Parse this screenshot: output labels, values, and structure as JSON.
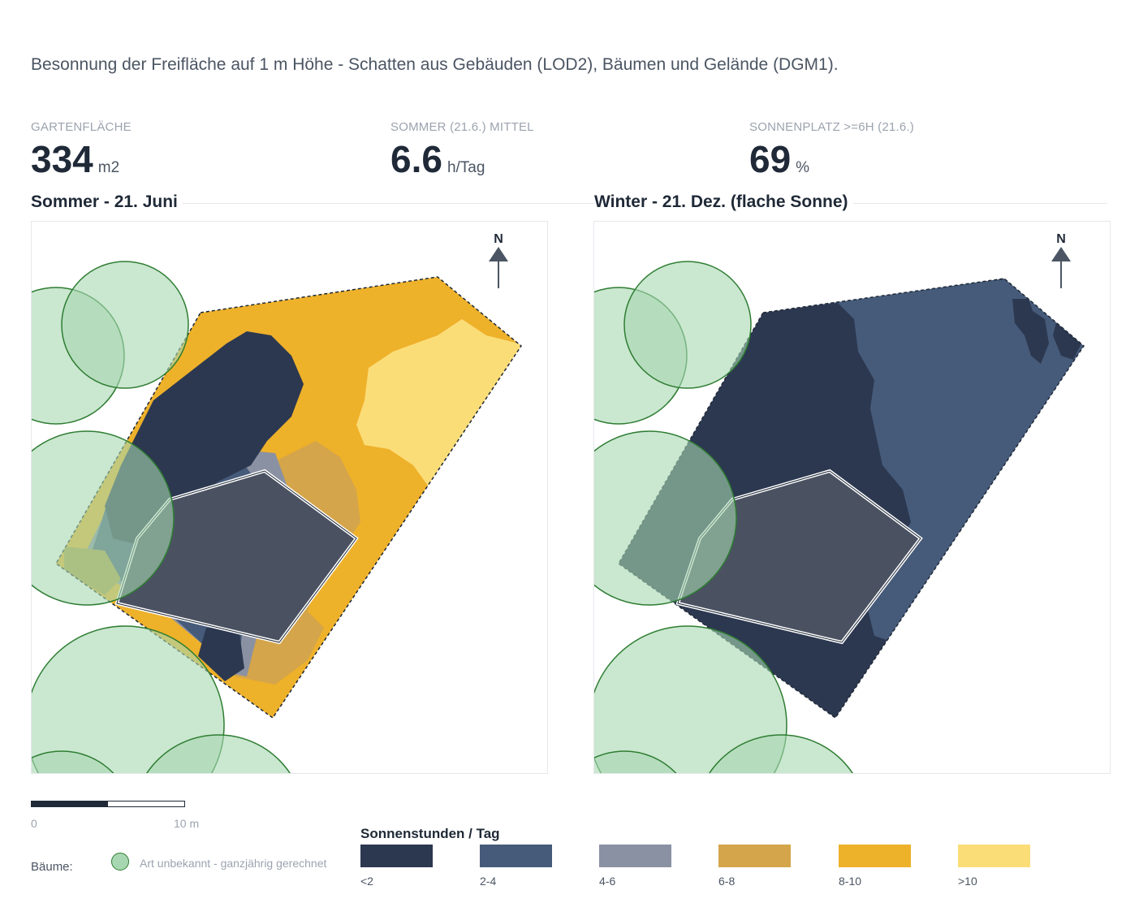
{
  "subtitle": "Besonnung der Freifläche auf 1 m Höhe - Schatten aus Gebäuden (LOD2), Bäumen und Gelände (DGM1).",
  "kpis": [
    {
      "label": "GARTENFLÄCHE",
      "value": "334",
      "unit": "m2"
    },
    {
      "label": "SOMMER (21.6.) MITTEL",
      "value": "6.6",
      "unit": "h/Tag"
    },
    {
      "label": "SONNENPLATZ >=6H (21.6.)",
      "value": "69",
      "unit": "%"
    }
  ],
  "panels": {
    "summer": {
      "title": "Sommer - 21. Juni",
      "north": "N"
    },
    "winter": {
      "title": "Winter - 21. Dez. (flache Sonne)",
      "north": "N"
    }
  },
  "scale": {
    "left": "0",
    "right": "10 m"
  },
  "trees": {
    "label": "Bäume:",
    "entry": "Art unbekannt - ganzjährig gerechnet"
  },
  "legend": {
    "title": "Sonnenstunden / Tag",
    "items": [
      {
        "label": "<2",
        "color": "#2c3850"
      },
      {
        "label": "2-4",
        "color": "#465b7a"
      },
      {
        "label": "4-6",
        "color": "#8a91a3"
      },
      {
        "label": "6-8",
        "color": "#d4a54a"
      },
      {
        "label": "8-10",
        "color": "#eeb12a"
      },
      {
        "label": ">10",
        "color": "#fbdd78"
      }
    ]
  },
  "colors": {
    "tree_fill": "#a7d7b0",
    "tree_stroke": "#2e7d32",
    "building": "#4a5262"
  }
}
